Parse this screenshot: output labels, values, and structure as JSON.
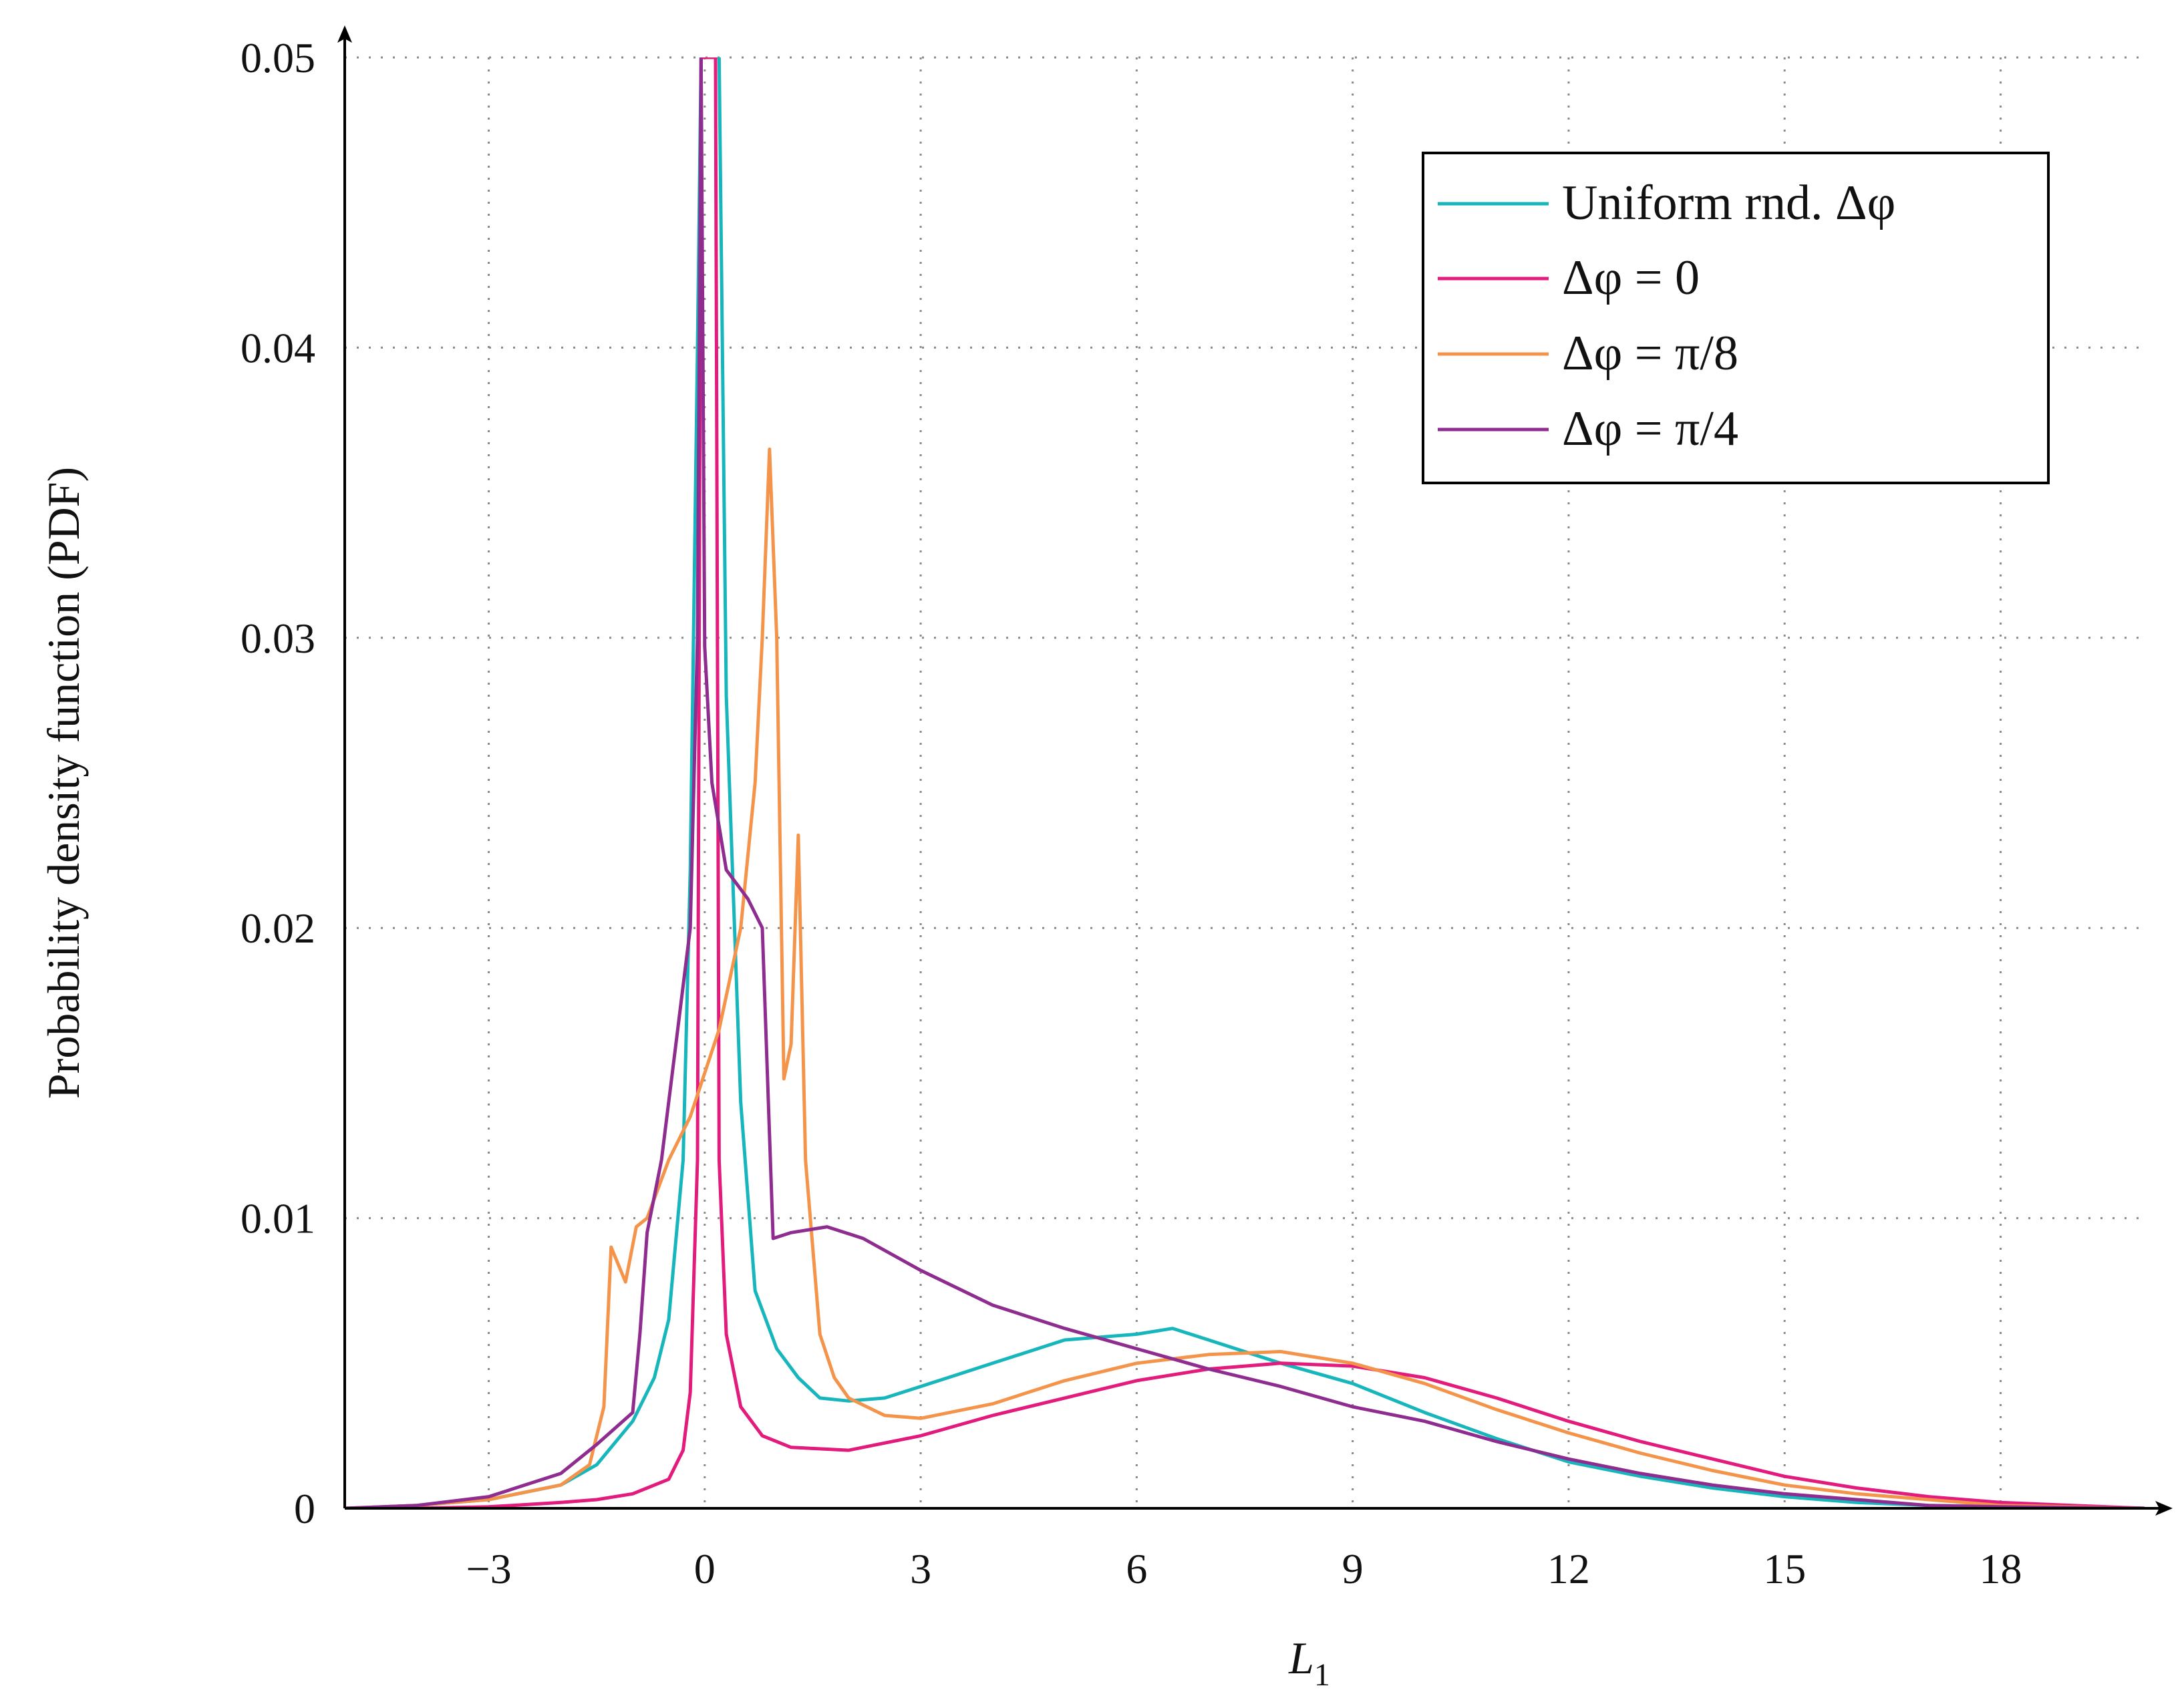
{
  "chart_data": {
    "type": "line",
    "title": "",
    "xlabel": "L",
    "xlabel_sub": "1",
    "ylabel": "Probability density function (PDF)",
    "xlim": [
      -5,
      20
    ],
    "ylim": [
      0,
      0.05
    ],
    "x_ticks": [
      -3,
      0,
      3,
      6,
      9,
      12,
      15,
      18
    ],
    "x_tick_labels": [
      "−3",
      "0",
      "3",
      "6",
      "9",
      "12",
      "15",
      "18"
    ],
    "y_ticks": [
      0,
      0.01,
      0.02,
      0.03,
      0.04,
      0.05
    ],
    "y_tick_labels": [
      "0",
      "0.01",
      "0.02",
      "0.03",
      "0.04",
      "0.05"
    ],
    "grid": "dotted",
    "legend_position": "top-right",
    "series": [
      {
        "name": "Uniform rnd. Δφ",
        "color": "#17b6bc",
        "points": [
          [
            -5,
            0
          ],
          [
            -4,
            0.0001
          ],
          [
            -3,
            0.0003
          ],
          [
            -2,
            0.0008
          ],
          [
            -1.5,
            0.0015
          ],
          [
            -1,
            0.003
          ],
          [
            -0.7,
            0.0045
          ],
          [
            -0.5,
            0.0065
          ],
          [
            -0.3,
            0.012
          ],
          [
            -0.2,
            0.022
          ],
          [
            -0.1,
            0.04
          ],
          [
            -0.05,
            0.05
          ],
          [
            0.2,
            0.05
          ],
          [
            0.3,
            0.028
          ],
          [
            0.5,
            0.014
          ],
          [
            0.7,
            0.0075
          ],
          [
            1,
            0.0055
          ],
          [
            1.3,
            0.0045
          ],
          [
            1.6,
            0.0038
          ],
          [
            2,
            0.0037
          ],
          [
            2.5,
            0.0038
          ],
          [
            3,
            0.0042
          ],
          [
            3.5,
            0.0046
          ],
          [
            4,
            0.005
          ],
          [
            5,
            0.0058
          ],
          [
            6,
            0.006
          ],
          [
            6.5,
            0.0062
          ],
          [
            7,
            0.0058
          ],
          [
            8,
            0.005
          ],
          [
            9,
            0.0043
          ],
          [
            10,
            0.0033
          ],
          [
            11,
            0.0024
          ],
          [
            12,
            0.0016
          ],
          [
            13,
            0.0011
          ],
          [
            14,
            0.0007
          ],
          [
            15,
            0.0004
          ],
          [
            16,
            0.0002
          ],
          [
            17,
            0.0001
          ],
          [
            18,
            5e-05
          ],
          [
            20,
            0
          ]
        ]
      },
      {
        "name": "Δφ = 0",
        "color": "#e21b7d",
        "points": [
          [
            -5,
            0
          ],
          [
            -4,
            0
          ],
          [
            -3,
            5e-05
          ],
          [
            -2,
            0.0002
          ],
          [
            -1.5,
            0.0003
          ],
          [
            -1,
            0.0005
          ],
          [
            -0.5,
            0.001
          ],
          [
            -0.3,
            0.002
          ],
          [
            -0.2,
            0.004
          ],
          [
            -0.1,
            0.012
          ],
          [
            -0.05,
            0.05
          ],
          [
            0.15,
            0.05
          ],
          [
            0.2,
            0.012
          ],
          [
            0.3,
            0.006
          ],
          [
            0.5,
            0.0035
          ],
          [
            0.8,
            0.0025
          ],
          [
            1.2,
            0.0021
          ],
          [
            2,
            0.002
          ],
          [
            3,
            0.0025
          ],
          [
            4,
            0.0032
          ],
          [
            5,
            0.0038
          ],
          [
            6,
            0.0044
          ],
          [
            7,
            0.0048
          ],
          [
            8,
            0.005
          ],
          [
            9,
            0.0049
          ],
          [
            10,
            0.0045
          ],
          [
            11,
            0.0038
          ],
          [
            12,
            0.003
          ],
          [
            13,
            0.0023
          ],
          [
            14,
            0.0017
          ],
          [
            15,
            0.0011
          ],
          [
            16,
            0.0007
          ],
          [
            17,
            0.0004
          ],
          [
            18,
            0.0002
          ],
          [
            19,
            0.0001
          ],
          [
            20,
            0
          ]
        ]
      },
      {
        "name": "Δφ = π/8",
        "color": "#f4944a",
        "points": [
          [
            -5,
            0
          ],
          [
            -4,
            0.0001
          ],
          [
            -3,
            0.0003
          ],
          [
            -2,
            0.0008
          ],
          [
            -1.6,
            0.0015
          ],
          [
            -1.5,
            0.0025
          ],
          [
            -1.4,
            0.0035
          ],
          [
            -1.3,
            0.009
          ],
          [
            -1.1,
            0.0078
          ],
          [
            -0.95,
            0.0097
          ],
          [
            -0.8,
            0.01
          ],
          [
            -0.5,
            0.012
          ],
          [
            -0.2,
            0.0135
          ],
          [
            0,
            0.015
          ],
          [
            0.2,
            0.0165
          ],
          [
            0.5,
            0.02
          ],
          [
            0.7,
            0.025
          ],
          [
            0.8,
            0.03
          ],
          [
            0.9,
            0.0365
          ],
          [
            1,
            0.03
          ],
          [
            1.1,
            0.0148
          ],
          [
            1.2,
            0.016
          ],
          [
            1.3,
            0.0232
          ],
          [
            1.4,
            0.012
          ],
          [
            1.6,
            0.006
          ],
          [
            1.8,
            0.0045
          ],
          [
            2,
            0.0038
          ],
          [
            2.5,
            0.0032
          ],
          [
            3,
            0.0031
          ],
          [
            4,
            0.0036
          ],
          [
            5,
            0.0044
          ],
          [
            6,
            0.005
          ],
          [
            7,
            0.0053
          ],
          [
            8,
            0.0054
          ],
          [
            9,
            0.005
          ],
          [
            10,
            0.0043
          ],
          [
            11,
            0.0034
          ],
          [
            12,
            0.0026
          ],
          [
            13,
            0.0019
          ],
          [
            14,
            0.0013
          ],
          [
            15,
            0.0008
          ],
          [
            16,
            0.0005
          ],
          [
            17,
            0.0003
          ],
          [
            18,
            0.0001
          ],
          [
            20,
            0
          ]
        ]
      },
      {
        "name": "Δφ = π/4",
        "color": "#8e2c8f",
        "points": [
          [
            -5,
            0
          ],
          [
            -4,
            0.0001
          ],
          [
            -3,
            0.0004
          ],
          [
            -2,
            0.0012
          ],
          [
            -1.5,
            0.0022
          ],
          [
            -1,
            0.0033
          ],
          [
            -0.9,
            0.006
          ],
          [
            -0.8,
            0.0095
          ],
          [
            -0.6,
            0.012
          ],
          [
            -0.4,
            0.016
          ],
          [
            -0.2,
            0.02
          ],
          [
            -0.1,
            0.03
          ],
          [
            -0.05,
            0.05
          ],
          [
            0,
            0.0297
          ],
          [
            0.1,
            0.025
          ],
          [
            0.3,
            0.022
          ],
          [
            0.6,
            0.021
          ],
          [
            0.8,
            0.02
          ],
          [
            0.95,
            0.0093
          ],
          [
            1.2,
            0.0095
          ],
          [
            1.7,
            0.0097
          ],
          [
            2.2,
            0.0093
          ],
          [
            3,
            0.0082
          ],
          [
            4,
            0.007
          ],
          [
            5,
            0.0062
          ],
          [
            6,
            0.0055
          ],
          [
            7,
            0.0048
          ],
          [
            8,
            0.0042
          ],
          [
            9,
            0.0035
          ],
          [
            10,
            0.003
          ],
          [
            11,
            0.0023
          ],
          [
            12,
            0.0017
          ],
          [
            13,
            0.0012
          ],
          [
            14,
            0.0008
          ],
          [
            15,
            0.0005
          ],
          [
            16,
            0.0003
          ],
          [
            17,
            0.0001
          ],
          [
            18,
            5e-05
          ],
          [
            20,
            0
          ]
        ]
      }
    ]
  }
}
